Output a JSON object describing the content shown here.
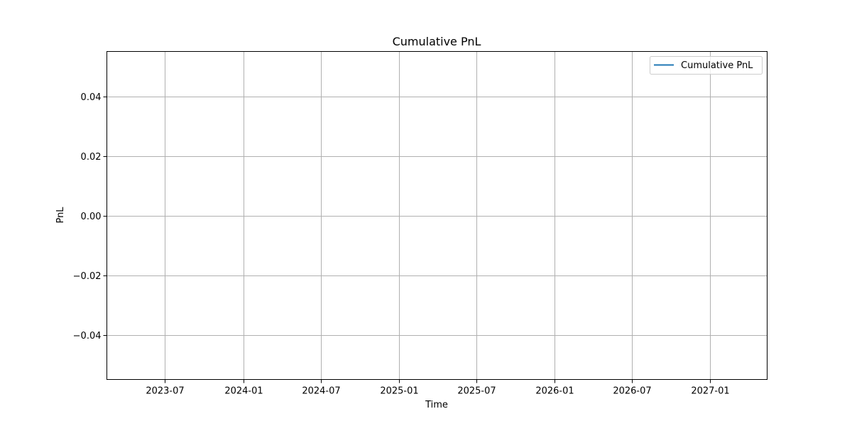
{
  "chart_data": {
    "type": "line",
    "title": "Cumulative PnL",
    "xlabel": "Time",
    "ylabel": "PnL",
    "x_scale": "date",
    "xlim": [
      "2023-02-15",
      "2027-05-15"
    ],
    "ylim": [
      -0.055,
      0.055
    ],
    "x_ticks": [
      {
        "value": "2023-07-01",
        "label": "2023-07"
      },
      {
        "value": "2024-01-01",
        "label": "2024-01"
      },
      {
        "value": "2024-07-01",
        "label": "2024-07"
      },
      {
        "value": "2025-01-01",
        "label": "2025-01"
      },
      {
        "value": "2025-07-01",
        "label": "2025-07"
      },
      {
        "value": "2026-01-01",
        "label": "2026-01"
      },
      {
        "value": "2026-07-01",
        "label": "2026-07"
      },
      {
        "value": "2027-01-01",
        "label": "2027-01"
      }
    ],
    "y_ticks": [
      {
        "value": 0.04,
        "label": "0.04"
      },
      {
        "value": 0.02,
        "label": "0.02"
      },
      {
        "value": 0.0,
        "label": "0.00"
      },
      {
        "value": -0.02,
        "label": "−0.02"
      },
      {
        "value": -0.04,
        "label": "−0.04"
      }
    ],
    "grid": true,
    "legend_position": "top-right",
    "series": [
      {
        "name": "Cumulative PnL",
        "color": "#1f77b4",
        "x": [],
        "y": []
      }
    ]
  }
}
